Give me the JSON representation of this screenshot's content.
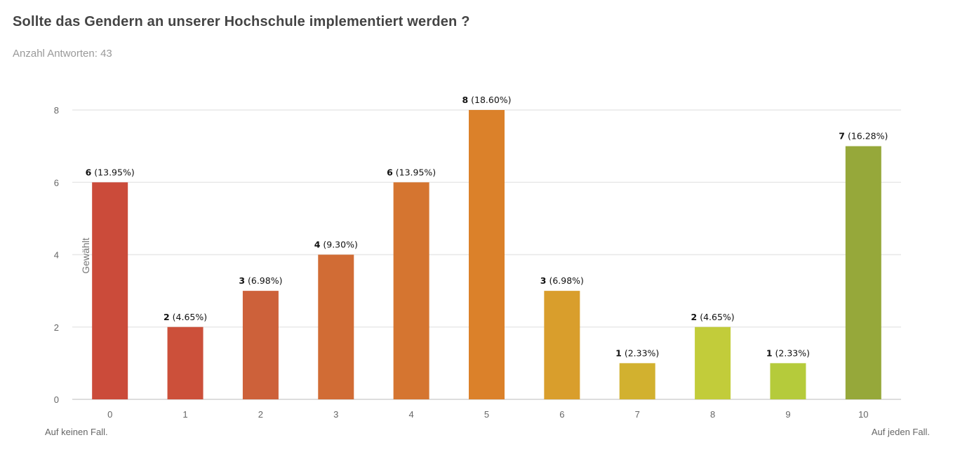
{
  "title": "Sollte das Gendern an unserer Hochschule implementiert werden ?",
  "subtitle": "Anzahl Antworten: 43",
  "chart_data": {
    "type": "bar",
    "categories": [
      "0",
      "1",
      "2",
      "3",
      "4",
      "5",
      "6",
      "7",
      "8",
      "9",
      "10"
    ],
    "values": [
      6,
      2,
      3,
      4,
      6,
      8,
      3,
      1,
      2,
      1,
      7
    ],
    "percent_labels": [
      "13.95%",
      "4.65%",
      "6.98%",
      "9.30%",
      "13.95%",
      "18.60%",
      "6.98%",
      "2.33%",
      "4.65%",
      "2.33%",
      "16.28%"
    ],
    "colors": [
      "#cb4b3a",
      "#cc503a",
      "#cd613a",
      "#d16c35",
      "#d57530",
      "#db812a",
      "#d99e2c",
      "#d2b12f",
      "#c2cc3a",
      "#b5cb3b",
      "#96a83a"
    ],
    "ylabel": "Gewählt",
    "yticks": [
      0,
      2,
      4,
      6,
      8
    ],
    "ylim": [
      0,
      8
    ],
    "grid": true,
    "x_min_label": "Auf keinen Fall.",
    "x_max_label": "Auf jeden Fall."
  }
}
